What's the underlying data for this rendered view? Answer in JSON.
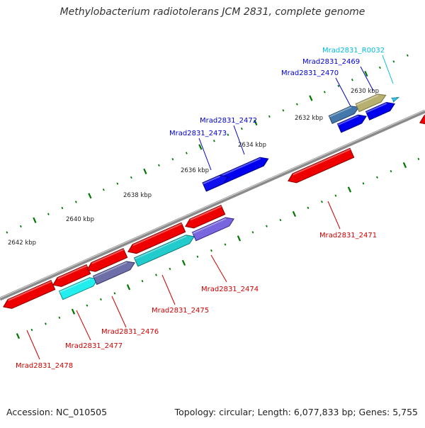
{
  "title": "Methylobacterium radiotolerans JCM 2831, complete genome",
  "footer": {
    "accession": "Accession: NC_010505",
    "topology": "Topology: circular; Length: 6,077,833 bp; Genes: 5,755"
  },
  "colors": {
    "forward_label": "#0000cc",
    "reverse_label": "#cc0000",
    "rna_label": "#00bbdd",
    "backbone": "#888888",
    "tick": "#007700"
  },
  "kbp_ticks": [
    {
      "label": "2630 kbp",
      "major": true
    },
    {
      "label": "2632 kbp",
      "major": true
    },
    {
      "label": "2634 kbp",
      "major": true
    },
    {
      "label": "2636 kbp",
      "major": true
    },
    {
      "label": "2638 kbp",
      "major": true
    },
    {
      "label": "2640 kbp",
      "major": true
    },
    {
      "label": "2642 kbp",
      "major": true
    }
  ],
  "genes": [
    {
      "id": "Mrad2831_R0032",
      "strand": "forward",
      "color": "#00ccee"
    },
    {
      "id": "Mrad2831_2469",
      "strand": "forward",
      "color": "#0000dd"
    },
    {
      "id": "Mrad2831_2470",
      "strand": "forward",
      "color": "#0000dd"
    },
    {
      "id": "Mrad2831_2472",
      "strand": "forward",
      "color": "#0000dd"
    },
    {
      "id": "Mrad2831_2473",
      "strand": "forward",
      "color": "#0000dd"
    },
    {
      "id": "Mrad2831_2471",
      "strand": "reverse",
      "color": "#ee0000"
    },
    {
      "id": "Mrad2831_2474",
      "strand": "reverse",
      "color": "#ee0000"
    },
    {
      "id": "Mrad2831_2475",
      "strand": "reverse",
      "color": "#ee0000"
    },
    {
      "id": "Mrad2831_2476",
      "strand": "reverse",
      "color": "#ee0000"
    },
    {
      "id": "Mrad2831_2477",
      "strand": "reverse",
      "color": "#ee0000"
    },
    {
      "id": "Mrad2831_2478",
      "strand": "reverse",
      "color": "#ee0000"
    }
  ]
}
